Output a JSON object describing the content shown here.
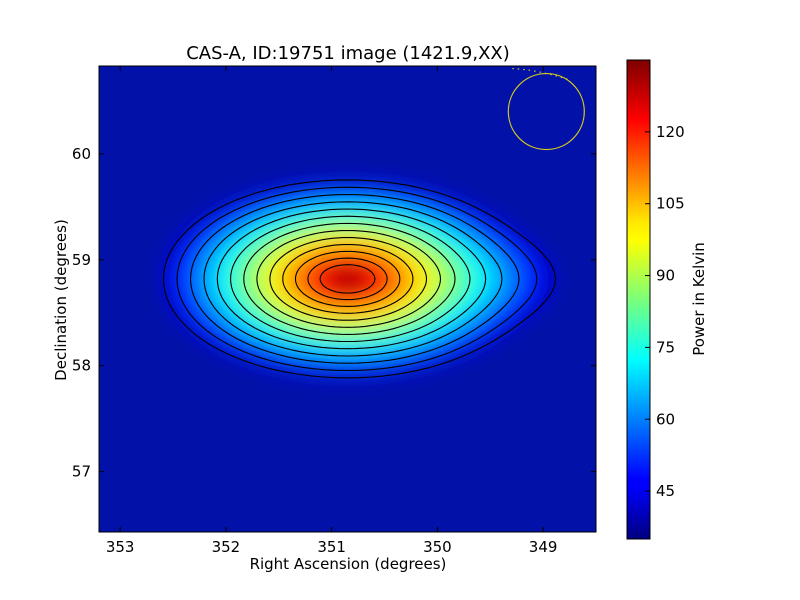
{
  "chart_data": {
    "type": "heatmap",
    "title": "CAS-A, ID:19751 image (1421.9,XX)",
    "xlabel": "Right Ascension (degrees)",
    "ylabel": "Declination (degrees)",
    "xlim": [
      353.2,
      348.5
    ],
    "ylim": [
      56.43,
      60.83
    ],
    "x_ticks": [
      "353",
      "352",
      "351",
      "350",
      "349"
    ],
    "y_ticks": [
      "57",
      "58",
      "59",
      "60"
    ],
    "colorbar": {
      "label": "Power in Kelvin",
      "range": [
        35,
        135
      ],
      "ticks": [
        "45",
        "60",
        "75",
        "90",
        "105",
        "120"
      ]
    },
    "source": {
      "ra": 350.85,
      "dec": 58.82,
      "peak_kelvin": 135,
      "background_kelvin": 38
    },
    "contours": 13,
    "beam": {
      "ra": 348.97,
      "dec": 60.4,
      "color": "#d4c81e"
    }
  }
}
